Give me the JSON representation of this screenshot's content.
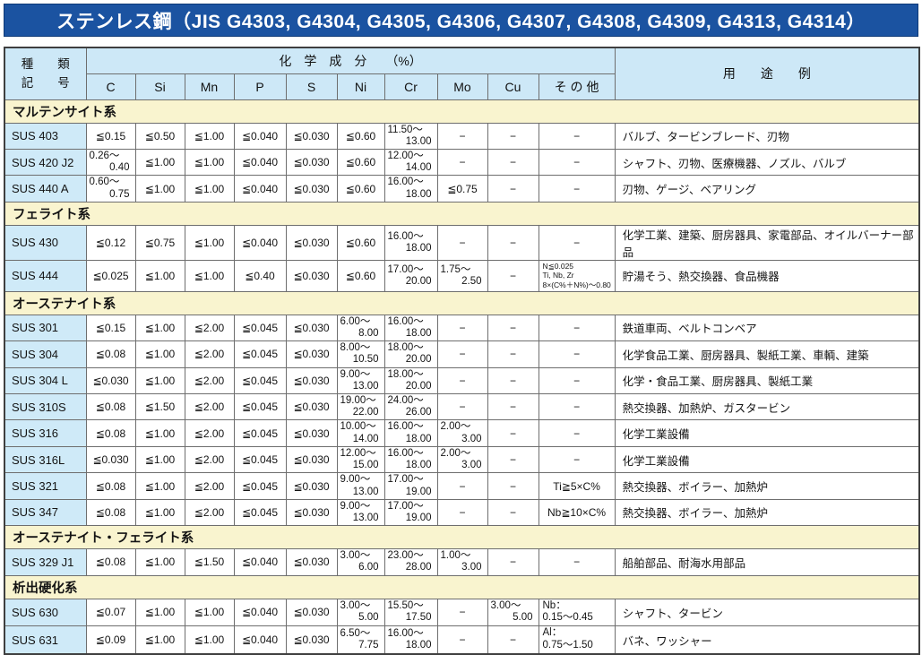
{
  "title": "ステンレス鋼（JIS G4303, G4304, G4305, G4306, G4307, G4308, G4309, G4313, G4314）",
  "colors": {
    "title_bar": "#1b53a1",
    "header_blue": "#cde8f7",
    "grade_cell_blue": "#cfeaf8",
    "section_yellow": "#f9f4cf",
    "border": "#6e6e6e"
  },
  "table": {
    "header": {
      "kind_top": "種　　類",
      "kind_bottom": "記　　号",
      "composition": "化　学　成　分　　（%）",
      "elements": [
        "C",
        "Si",
        "Mn",
        "P",
        "S",
        "Ni",
        "Cr",
        "Mo",
        "Cu",
        "そ の 他"
      ],
      "usage": "用　　途　　例"
    },
    "sections": [
      {
        "name": "マルテンサイト系",
        "rows": [
          {
            "code": "SUS 403",
            "cells": [
              "≦0.15",
              "≦0.50",
              "≦1.00",
              "≦0.040",
              "≦0.030",
              "≦0.60",
              [
                "11.50～",
                "13.00"
              ],
              "−",
              "−",
              "−"
            ],
            "usage": "バルブ、タービンブレード、刃物"
          },
          {
            "code": "SUS 420 J2",
            "cells": [
              [
                "0.26～",
                "0.40"
              ],
              "≦1.00",
              "≦1.00",
              "≦0.040",
              "≦0.030",
              "≦0.60",
              [
                "12.00～",
                "14.00"
              ],
              "−",
              "−",
              "−"
            ],
            "usage": "シャフト、刃物、医療機器、ノズル、バルブ"
          },
          {
            "code": "SUS 440 A",
            "cells": [
              [
                "0.60～",
                "0.75"
              ],
              "≦1.00",
              "≦1.00",
              "≦0.040",
              "≦0.030",
              "≦0.60",
              [
                "16.00～",
                "18.00"
              ],
              "≦0.75",
              "−",
              "−"
            ],
            "usage": "刃物、ゲージ、ベアリング"
          }
        ]
      },
      {
        "name": "フェライト系",
        "rows": [
          {
            "code": "SUS 430",
            "cells": [
              "≦0.12",
              "≦0.75",
              "≦1.00",
              "≦0.040",
              "≦0.030",
              "≦0.60",
              [
                "16.00～",
                "18.00"
              ],
              "−",
              "−",
              "−"
            ],
            "usage": "化学工業、建築、厨房器具、家電部品、オイルバーナー部品"
          },
          {
            "code": "SUS 444",
            "cells": [
              "≦0.025",
              "≦1.00",
              "≦1.00",
              "≦0.40",
              "≦0.030",
              "≦0.60",
              [
                "17.00～",
                "20.00"
              ],
              [
                "1.75～",
                "2.50"
              ],
              "−",
              [
                "N≦0.025",
                "Ti, Nb, Zr",
                "8×(C%＋N%)～0.80"
              ]
            ],
            "usage": "貯湯そう、熱交換器、食品機器"
          }
        ]
      },
      {
        "name": "オーステナイト系",
        "rows": [
          {
            "code": "SUS 301",
            "cells": [
              "≦0.15",
              "≦1.00",
              "≦2.00",
              "≦0.045",
              "≦0.030",
              [
                "6.00～",
                "8.00"
              ],
              [
                "16.00～",
                "18.00"
              ],
              "−",
              "−",
              "−"
            ],
            "usage": "鉄道車両、ベルトコンベア"
          },
          {
            "code": "SUS 304",
            "cells": [
              "≦0.08",
              "≦1.00",
              "≦2.00",
              "≦0.045",
              "≦0.030",
              [
                "8.00～",
                "10.50"
              ],
              [
                "18.00～",
                "20.00"
              ],
              "−",
              "−",
              "−"
            ],
            "usage": "化学食品工業、厨房器具、製紙工業、車輌、建築"
          },
          {
            "code": "SUS 304 L",
            "cells": [
              "≦0.030",
              "≦1.00",
              "≦2.00",
              "≦0.045",
              "≦0.030",
              [
                "9.00～",
                "13.00"
              ],
              [
                "18.00～",
                "20.00"
              ],
              "−",
              "−",
              "−"
            ],
            "usage": "化学・食品工業、厨房器具、製紙工業"
          },
          {
            "code": "SUS 310S",
            "cells": [
              "≦0.08",
              "≦1.50",
              "≦2.00",
              "≦0.045",
              "≦0.030",
              [
                "19.00～",
                "22.00"
              ],
              [
                "24.00～",
                "26.00"
              ],
              "−",
              "−",
              "−"
            ],
            "usage": "熱交換器、加熱炉、ガスタービン"
          },
          {
            "code": "SUS 316",
            "cells": [
              "≦0.08",
              "≦1.00",
              "≦2.00",
              "≦0.045",
              "≦0.030",
              [
                "10.00～",
                "14.00"
              ],
              [
                "16.00～",
                "18.00"
              ],
              [
                "2.00～",
                "3.00"
              ],
              "−",
              "−"
            ],
            "usage": "化学工業設備"
          },
          {
            "code": "SUS 316L",
            "cells": [
              "≦0.030",
              "≦1.00",
              "≦2.00",
              "≦0.045",
              "≦0.030",
              [
                "12.00～",
                "15.00"
              ],
              [
                "16.00～",
                "18.00"
              ],
              [
                "2.00～",
                "3.00"
              ],
              "−",
              "−"
            ],
            "usage": "化学工業設備"
          },
          {
            "code": "SUS 321",
            "cells": [
              "≦0.08",
              "≦1.00",
              "≦2.00",
              "≦0.045",
              "≦0.030",
              [
                "9.00～",
                "13.00"
              ],
              [
                "17.00～",
                "19.00"
              ],
              "−",
              "−",
              "Ti≧5×C%"
            ],
            "usage": "熱交換器、ボイラー、加熱炉"
          },
          {
            "code": "SUS 347",
            "cells": [
              "≦0.08",
              "≦1.00",
              "≦2.00",
              "≦0.045",
              "≦0.030",
              [
                "9.00～",
                "13.00"
              ],
              [
                "17.00～",
                "19.00"
              ],
              "−",
              "−",
              "Nb≧10×C%"
            ],
            "usage": "熱交換器、ボイラー、加熱炉"
          }
        ]
      },
      {
        "name": "オーステナイト・フェライト系",
        "rows": [
          {
            "code": "SUS 329 J1",
            "cells": [
              "≦0.08",
              "≦1.00",
              "≦1.50",
              "≦0.040",
              "≦0.030",
              [
                "3.00～",
                "6.00"
              ],
              [
                "23.00～",
                "28.00"
              ],
              [
                "1.00～",
                "3.00"
              ],
              "−",
              "−"
            ],
            "usage": "船舶部品、耐海水用部品"
          }
        ]
      },
      {
        "name": "析出硬化系",
        "rows": [
          {
            "code": "SUS 630",
            "cells": [
              "≦0.07",
              "≦1.00",
              "≦1.00",
              "≦0.040",
              "≦0.030",
              [
                "3.00～",
                "5.00"
              ],
              [
                "15.50～",
                "17.50"
              ],
              "−",
              [
                "3.00～",
                "5.00"
              ],
              [
                "Nb：",
                "0.15～0.45"
              ]
            ],
            "usage": "シャフト、タービン"
          },
          {
            "code": "SUS 631",
            "cells": [
              "≦0.09",
              "≦1.00",
              "≦1.00",
              "≦0.040",
              "≦0.030",
              [
                "6.50～",
                "7.75"
              ],
              [
                "16.00～",
                "18.00"
              ],
              "−",
              "−",
              [
                "Al：",
                "0.75～1.50"
              ]
            ],
            "usage": "バネ、ワッシャー"
          }
        ]
      }
    ]
  }
}
